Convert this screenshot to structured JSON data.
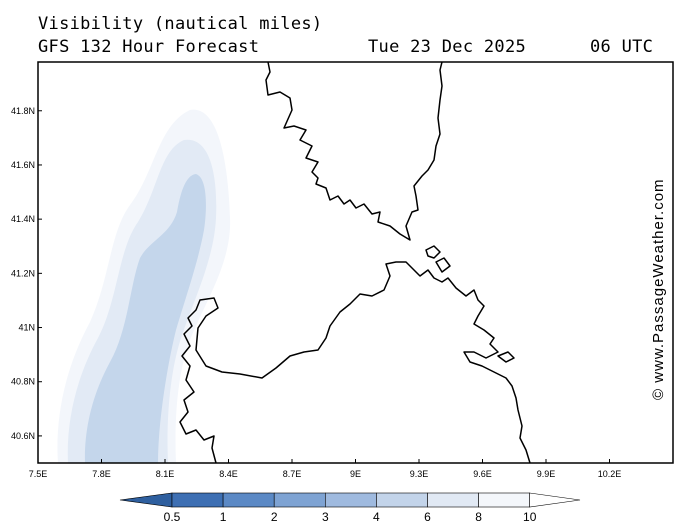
{
  "header": {
    "title": "Visibility (nautical miles)",
    "model": "GFS 132 Hour Forecast",
    "date": "Tue 23 Dec 2025",
    "time": "06 UTC"
  },
  "credit": "© www.PassageWeather.com",
  "map": {
    "lon_range": [
      7.5,
      10.5
    ],
    "lat_range": [
      40.5,
      41.98
    ],
    "lon_ticks": [
      "7.5E",
      "7.8E",
      "8.1E",
      "8.4E",
      "8.7E",
      "9E",
      "9.3E",
      "9.6E",
      "9.9E",
      "10.2E"
    ],
    "lat_ticks": [
      "40.6N",
      "40.8N",
      "41N",
      "41.2N",
      "41.4N",
      "41.6N",
      "41.8N"
    ],
    "coastline_color": "#000000",
    "visibility_zones_nm": [
      10,
      8,
      6
    ]
  },
  "colorbar": {
    "labels": [
      "0.5",
      "1",
      "2",
      "3",
      "4",
      "6",
      "8",
      "10"
    ],
    "colors": [
      "#3d6fb3",
      "#5b89c5",
      "#7ea3d3",
      "#9fbadf",
      "#c3d4ea",
      "#e1e9f4",
      "#f4f7fb"
    ]
  }
}
